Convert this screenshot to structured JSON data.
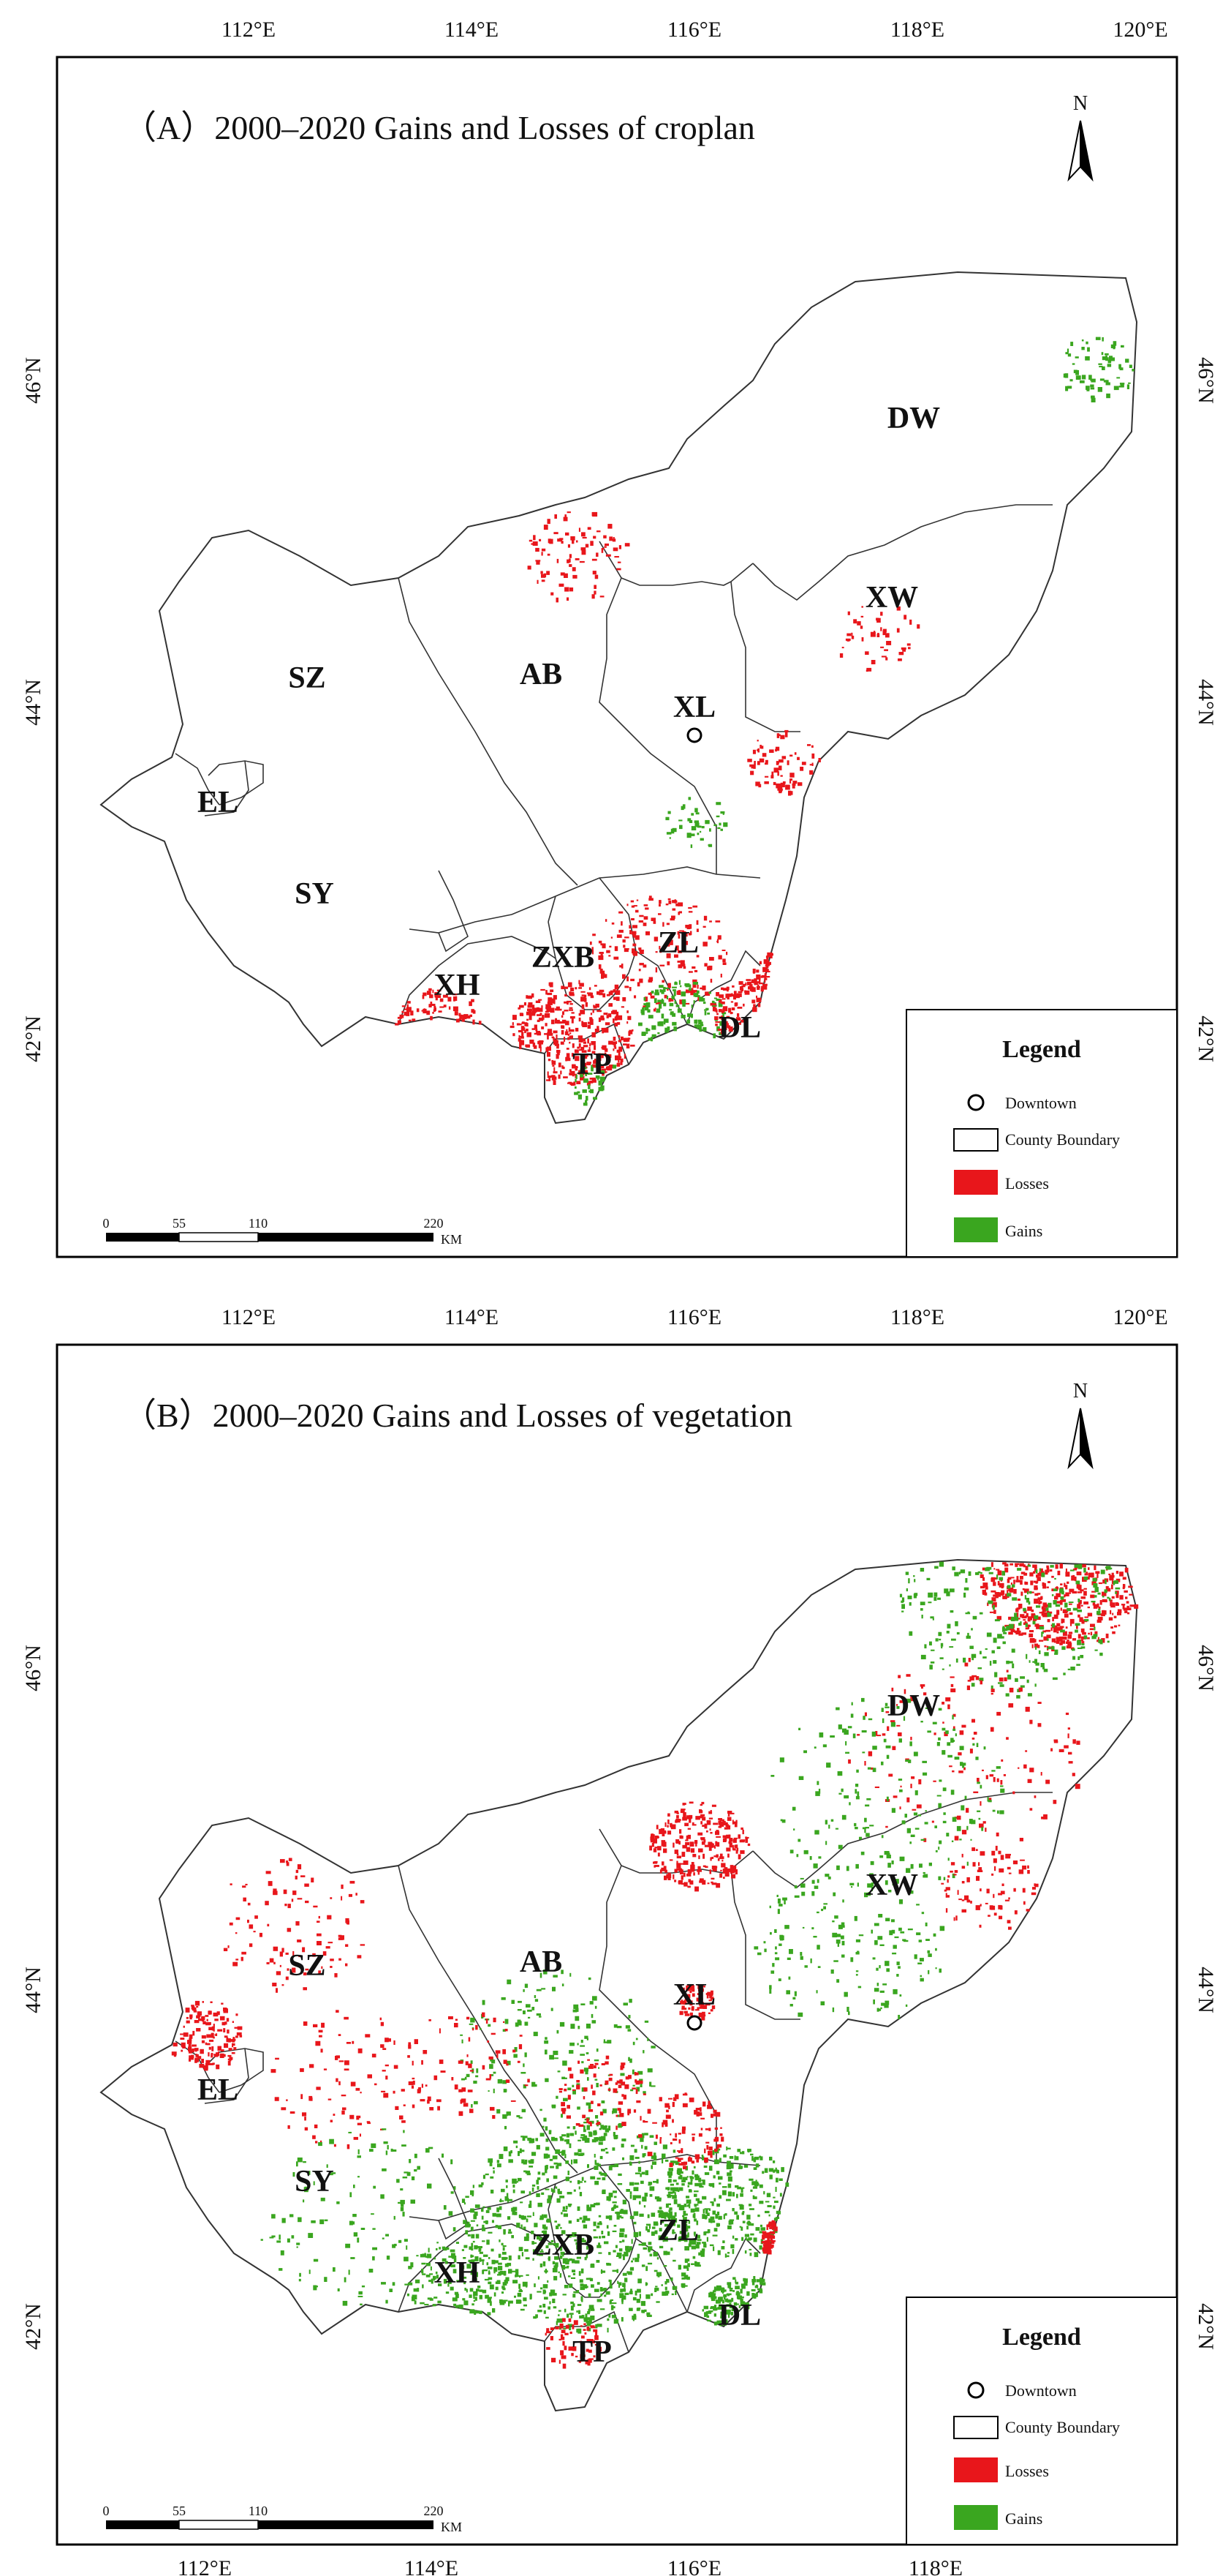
{
  "panels": [
    {
      "id": "A",
      "title": "（A）2000–2020 Gains and Losses of croplan",
      "top_ticks": [
        "112°E",
        "114°E",
        "116°E",
        "118°E",
        "120°E"
      ],
      "left_ticks": [
        "46°N",
        "44°N",
        "42°N"
      ],
      "right_ticks": [
        "46°N",
        "44°N",
        "42°N"
      ],
      "bottom_ticks": [],
      "north_label": "N",
      "counties": [
        "DW",
        "XW",
        "SZ",
        "AB",
        "XL",
        "EL",
        "SY",
        "XH",
        "ZXB",
        "ZL",
        "DL",
        "TP"
      ],
      "legend": {
        "title": "Legend",
        "items": [
          "Downtown",
          "County Boundary",
          "Losses",
          "Gains"
        ]
      },
      "scale": {
        "labels": [
          "0",
          "55",
          "110",
          "220"
        ],
        "unit": "KM"
      }
    },
    {
      "id": "B",
      "title": "（B）2000–2020 Gains and Losses of vegetation",
      "top_ticks": [
        "112°E",
        "114°E",
        "116°E",
        "118°E",
        "120°E"
      ],
      "left_ticks": [
        "46°N",
        "44°N",
        "42°N"
      ],
      "right_ticks": [
        "46°N",
        "44°N",
        "42°N"
      ],
      "bottom_ticks": [
        "112°E",
        "114°E",
        "116°E",
        "118°E"
      ],
      "north_label": "N",
      "counties": [
        "DW",
        "XW",
        "SZ",
        "AB",
        "XL",
        "EL",
        "SY",
        "XH",
        "ZXB",
        "ZL",
        "DL",
        "TP"
      ],
      "legend": {
        "title": "Legend",
        "items": [
          "Downtown",
          "County Boundary",
          "Losses",
          "Gains"
        ]
      },
      "scale": {
        "labels": [
          "0",
          "55",
          "110",
          "220"
        ],
        "unit": "KM"
      }
    }
  ],
  "colors": {
    "losses": "#e8161b",
    "gains": "#3aa61f",
    "boundary": "#333333",
    "frame": "#000000"
  }
}
